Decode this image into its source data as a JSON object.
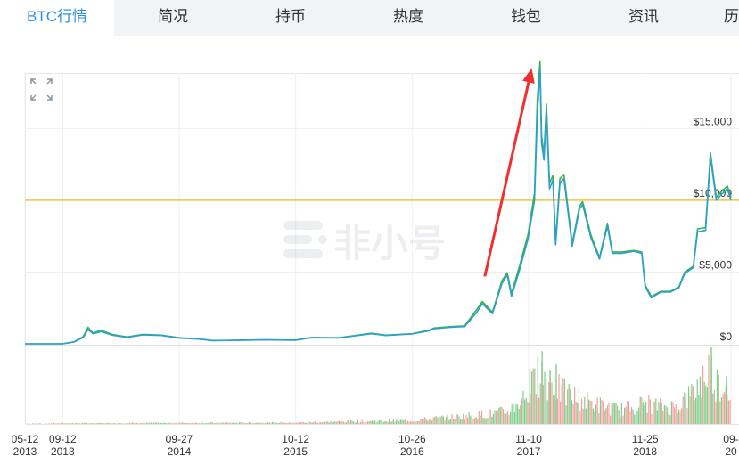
{
  "tabs": [
    {
      "label": "BTC行情",
      "active": true
    },
    {
      "label": "简况"
    },
    {
      "label": "持币"
    },
    {
      "label": "热度"
    },
    {
      "label": "钱包"
    },
    {
      "label": "资讯"
    },
    {
      "label": "历"
    }
  ],
  "watermark": "非小号",
  "icons": {
    "expand": "expand-icon",
    "arrow": "red-arrow-annotation"
  },
  "colors": {
    "tab_active": "#2a8fe0",
    "price_blue": "#2b9fd3",
    "price_green": "#3ab34a",
    "reference_line": "#f6c343",
    "arrow": "#f03030",
    "volume_up": "#7fcf8a",
    "volume_down": "#f2a19c"
  },
  "chart_data": {
    "type": "line",
    "y_axis": {
      "min": 0,
      "max": 18000,
      "position": "right",
      "ticks": [
        "$0",
        "$5,000",
        "$10,000",
        "$15,000"
      ],
      "tick_values": [
        0,
        5000,
        10000,
        15000
      ]
    },
    "x_ticks": [
      {
        "date": "2013-05-12",
        "line1": "05-12",
        "line2": "2013"
      },
      {
        "date": "2013-09-12",
        "line1": "09-12",
        "line2": "2013"
      },
      {
        "date": "2014-09-27",
        "line1": "09-27",
        "line2": "2014"
      },
      {
        "date": "2015-10-12",
        "line1": "10-12",
        "line2": "2015"
      },
      {
        "date": "2016-10-26",
        "line1": "10-26",
        "line2": "2016"
      },
      {
        "date": "2017-11-10",
        "line1": "11-10",
        "line2": "2017"
      },
      {
        "date": "2018-11-25",
        "line1": "11-25",
        "line2": "2018"
      },
      {
        "date": "2019-09-01",
        "line1": "09-",
        "line2": "20"
      }
    ],
    "reference_line": 10000,
    "grid": true,
    "series": [
      {
        "color": "#2b9fd3",
        "points": [
          [
            "2013-05-12",
            0
          ],
          [
            "2013-09-12",
            0
          ],
          [
            "2013-10-20",
            130
          ],
          [
            "2013-11-18",
            450
          ],
          [
            "2013-12-04",
            1000
          ],
          [
            "2013-12-20",
            700
          ],
          [
            "2014-01-15",
            850
          ],
          [
            "2014-02-20",
            600
          ],
          [
            "2014-04-10",
            450
          ],
          [
            "2014-06-01",
            620
          ],
          [
            "2014-08-01",
            580
          ],
          [
            "2014-09-27",
            400
          ],
          [
            "2014-12-01",
            330
          ],
          [
            "2015-01-15",
            220
          ],
          [
            "2015-04-01",
            240
          ],
          [
            "2015-07-01",
            270
          ],
          [
            "2015-10-12",
            250
          ],
          [
            "2015-12-01",
            420
          ],
          [
            "2016-03-01",
            410
          ],
          [
            "2016-06-15",
            700
          ],
          [
            "2016-08-01",
            580
          ],
          [
            "2016-10-26",
            680
          ],
          [
            "2016-12-20",
            900
          ],
          [
            "2017-01-05",
            1050
          ],
          [
            "2017-03-01",
            1150
          ],
          [
            "2017-04-15",
            1200
          ],
          [
            "2017-05-25",
            2200
          ],
          [
            "2017-06-12",
            2800
          ],
          [
            "2017-07-15",
            2100
          ],
          [
            "2017-08-15",
            4200
          ],
          [
            "2017-09-01",
            4800
          ],
          [
            "2017-09-15",
            3300
          ],
          [
            "2017-10-12",
            5200
          ],
          [
            "2017-11-08",
            7300
          ],
          [
            "2017-11-29",
            10000
          ],
          [
            "2017-12-08",
            16000
          ],
          [
            "2017-12-17",
            19100
          ],
          [
            "2017-12-22",
            14000
          ],
          [
            "2017-12-30",
            12800
          ],
          [
            "2018-01-07",
            16200
          ],
          [
            "2018-01-17",
            10800
          ],
          [
            "2018-01-28",
            11400
          ],
          [
            "2018-02-06",
            6900
          ],
          [
            "2018-02-20",
            11200
          ],
          [
            "2018-03-05",
            11500
          ],
          [
            "2018-04-01",
            6800
          ],
          [
            "2018-04-25",
            9400
          ],
          [
            "2018-05-05",
            9700
          ],
          [
            "2018-06-01",
            7400
          ],
          [
            "2018-06-29",
            5900
          ],
          [
            "2018-07-25",
            8200
          ],
          [
            "2018-08-10",
            6300
          ],
          [
            "2018-09-10",
            6300
          ],
          [
            "2018-10-20",
            6450
          ],
          [
            "2018-11-14",
            6300
          ],
          [
            "2018-11-25",
            4000
          ],
          [
            "2018-12-15",
            3200
          ],
          [
            "2019-01-15",
            3600
          ],
          [
            "2019-02-15",
            3600
          ],
          [
            "2019-03-15",
            3900
          ],
          [
            "2019-04-03",
            4900
          ],
          [
            "2019-05-01",
            5300
          ],
          [
            "2019-05-15",
            7800
          ],
          [
            "2019-06-10",
            7900
          ],
          [
            "2019-06-26",
            13000
          ],
          [
            "2019-07-15",
            10000
          ],
          [
            "2019-08-01",
            10400
          ],
          [
            "2019-08-20",
            10800
          ],
          [
            "2019-09-01",
            10000
          ]
        ]
      },
      {
        "color": "#3ab34a",
        "points": [
          [
            "2013-05-12",
            0
          ],
          [
            "2013-09-12",
            0
          ],
          [
            "2013-10-20",
            150
          ],
          [
            "2013-11-18",
            500
          ],
          [
            "2013-12-04",
            1150
          ],
          [
            "2013-12-20",
            750
          ],
          [
            "2014-01-15",
            950
          ],
          [
            "2014-02-20",
            650
          ],
          [
            "2014-04-10",
            480
          ],
          [
            "2014-06-01",
            660
          ],
          [
            "2014-08-01",
            600
          ],
          [
            "2014-09-27",
            420
          ],
          [
            "2014-12-01",
            340
          ],
          [
            "2015-01-15",
            230
          ],
          [
            "2015-04-01",
            245
          ],
          [
            "2015-07-01",
            280
          ],
          [
            "2015-10-12",
            260
          ],
          [
            "2015-12-01",
            440
          ],
          [
            "2016-03-01",
            420
          ],
          [
            "2016-06-15",
            730
          ],
          [
            "2016-08-01",
            600
          ],
          [
            "2016-10-26",
            700
          ],
          [
            "2016-12-20",
            950
          ],
          [
            "2017-01-05",
            1100
          ],
          [
            "2017-03-01",
            1200
          ],
          [
            "2017-04-15",
            1250
          ],
          [
            "2017-05-25",
            2400
          ],
          [
            "2017-06-12",
            2950
          ],
          [
            "2017-07-15",
            2200
          ],
          [
            "2017-08-15",
            4400
          ],
          [
            "2017-09-01",
            4950
          ],
          [
            "2017-09-15",
            3500
          ],
          [
            "2017-10-12",
            5500
          ],
          [
            "2017-11-08",
            7600
          ],
          [
            "2017-11-29",
            10500
          ],
          [
            "2017-12-08",
            17000
          ],
          [
            "2017-12-17",
            19700
          ],
          [
            "2017-12-22",
            14500
          ],
          [
            "2017-12-30",
            13200
          ],
          [
            "2018-01-07",
            16700
          ],
          [
            "2018-01-17",
            11200
          ],
          [
            "2018-01-28",
            11700
          ],
          [
            "2018-02-06",
            7100
          ],
          [
            "2018-02-20",
            11500
          ],
          [
            "2018-03-05",
            11800
          ],
          [
            "2018-04-01",
            7000
          ],
          [
            "2018-04-25",
            9600
          ],
          [
            "2018-05-05",
            9900
          ],
          [
            "2018-06-01",
            7600
          ],
          [
            "2018-06-29",
            6000
          ],
          [
            "2018-07-25",
            8400
          ],
          [
            "2018-08-10",
            6400
          ],
          [
            "2018-09-10",
            6400
          ],
          [
            "2018-10-20",
            6500
          ],
          [
            "2018-11-14",
            6400
          ],
          [
            "2018-11-25",
            4100
          ],
          [
            "2018-12-15",
            3300
          ],
          [
            "2019-01-15",
            3650
          ],
          [
            "2019-02-15",
            3650
          ],
          [
            "2019-03-15",
            3950
          ],
          [
            "2019-04-03",
            5000
          ],
          [
            "2019-05-01",
            5400
          ],
          [
            "2019-05-15",
            8000
          ],
          [
            "2019-06-10",
            8100
          ],
          [
            "2019-06-26",
            13300
          ],
          [
            "2019-07-15",
            10200
          ],
          [
            "2019-08-01",
            10600
          ],
          [
            "2019-08-20",
            11000
          ],
          [
            "2019-09-01",
            10200
          ]
        ]
      }
    ],
    "annotation_arrow": {
      "from": {
        "date": "2017-06-20",
        "value": 4700
      },
      "to": {
        "date": "2017-11-20",
        "value": 19200
      }
    },
    "volume": {
      "max": 100,
      "envelope": [
        [
          "2013-05-12",
          0.5
        ],
        [
          "2013-09-12",
          1
        ],
        [
          "2014-09-27",
          1.5
        ],
        [
          "2015-10-12",
          2
        ],
        [
          "2016-06-01",
          4
        ],
        [
          "2016-10-26",
          5
        ],
        [
          "2017-01-01",
          8
        ],
        [
          "2017-05-01",
          12
        ],
        [
          "2017-09-01",
          18
        ],
        [
          "2017-11-10",
          45
        ],
        [
          "2017-12-15",
          75
        ],
        [
          "2018-01-15",
          60
        ],
        [
          "2018-03-01",
          45
        ],
        [
          "2018-06-01",
          30
        ],
        [
          "2018-09-01",
          20
        ],
        [
          "2018-11-25",
          30
        ],
        [
          "2019-01-15",
          25
        ],
        [
          "2019-03-01",
          25
        ],
        [
          "2019-05-01",
          45
        ],
        [
          "2019-06-20",
          80
        ],
        [
          "2019-07-15",
          60
        ],
        [
          "2019-09-01",
          50
        ]
      ],
      "spikes": [
        [
          "2017-11-12",
          72
        ],
        [
          "2017-12-08",
          88
        ],
        [
          "2017-12-22",
          95
        ],
        [
          "2018-01-17",
          70
        ],
        [
          "2018-02-06",
          78
        ],
        [
          "2019-06-27",
          100
        ],
        [
          "2019-07-16",
          70
        ],
        [
          "2019-08-15",
          62
        ]
      ]
    }
  }
}
